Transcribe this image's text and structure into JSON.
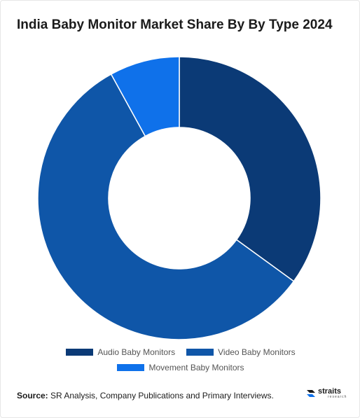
{
  "title": "India Baby Monitor Market Share By By Type 2024",
  "chart_data": {
    "type": "pie",
    "variant": "donut",
    "title": "India Baby Monitor Market Share By By Type 2024",
    "categories": [
      "Audio Baby Monitors",
      "Video Baby Monitors",
      "Movement Baby Monitors"
    ],
    "values": [
      35,
      57,
      8
    ],
    "unit": "%",
    "colors": [
      "#0b3a76",
      "#0f56a8",
      "#0f71ea"
    ],
    "legend_position": "bottom"
  },
  "legend": [
    {
      "label": "Audio Baby Monitors",
      "color": "#0b3a76"
    },
    {
      "label": "Video Baby Monitors",
      "color": "#0f56a8"
    },
    {
      "label": "Movement Baby Monitors",
      "color": "#0f71ea"
    }
  ],
  "source": {
    "prefix": "Source:",
    "text": " SR Analysis, Company Publications and Primary Interviews."
  },
  "logo": {
    "name": "straits",
    "sub": "research",
    "icon": "straits-logo-icon"
  }
}
